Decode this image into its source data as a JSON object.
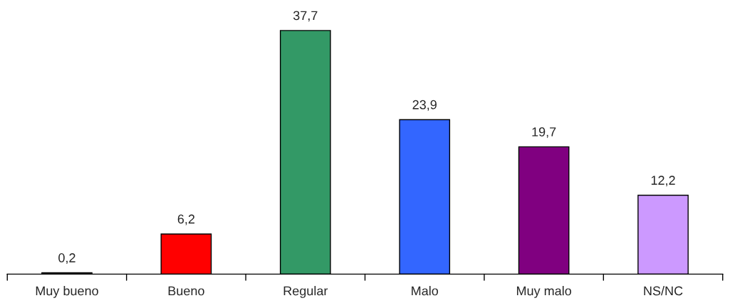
{
  "chart_data": {
    "type": "bar",
    "categories": [
      "Muy bueno",
      "Bueno",
      "Regular",
      "Malo",
      "Muy malo",
      "NS/NC"
    ],
    "values": [
      0.2,
      6.2,
      37.7,
      23.9,
      19.7,
      12.2
    ],
    "colors": [
      "#000000",
      "#ff0000",
      "#339966",
      "#3366ff",
      "#800080",
      "#cc99ff"
    ],
    "value_labels": [
      "0,2",
      "6,2",
      "37,7",
      "23,9",
      "19,7",
      "12,2"
    ],
    "grid": false,
    "legend": false
  }
}
